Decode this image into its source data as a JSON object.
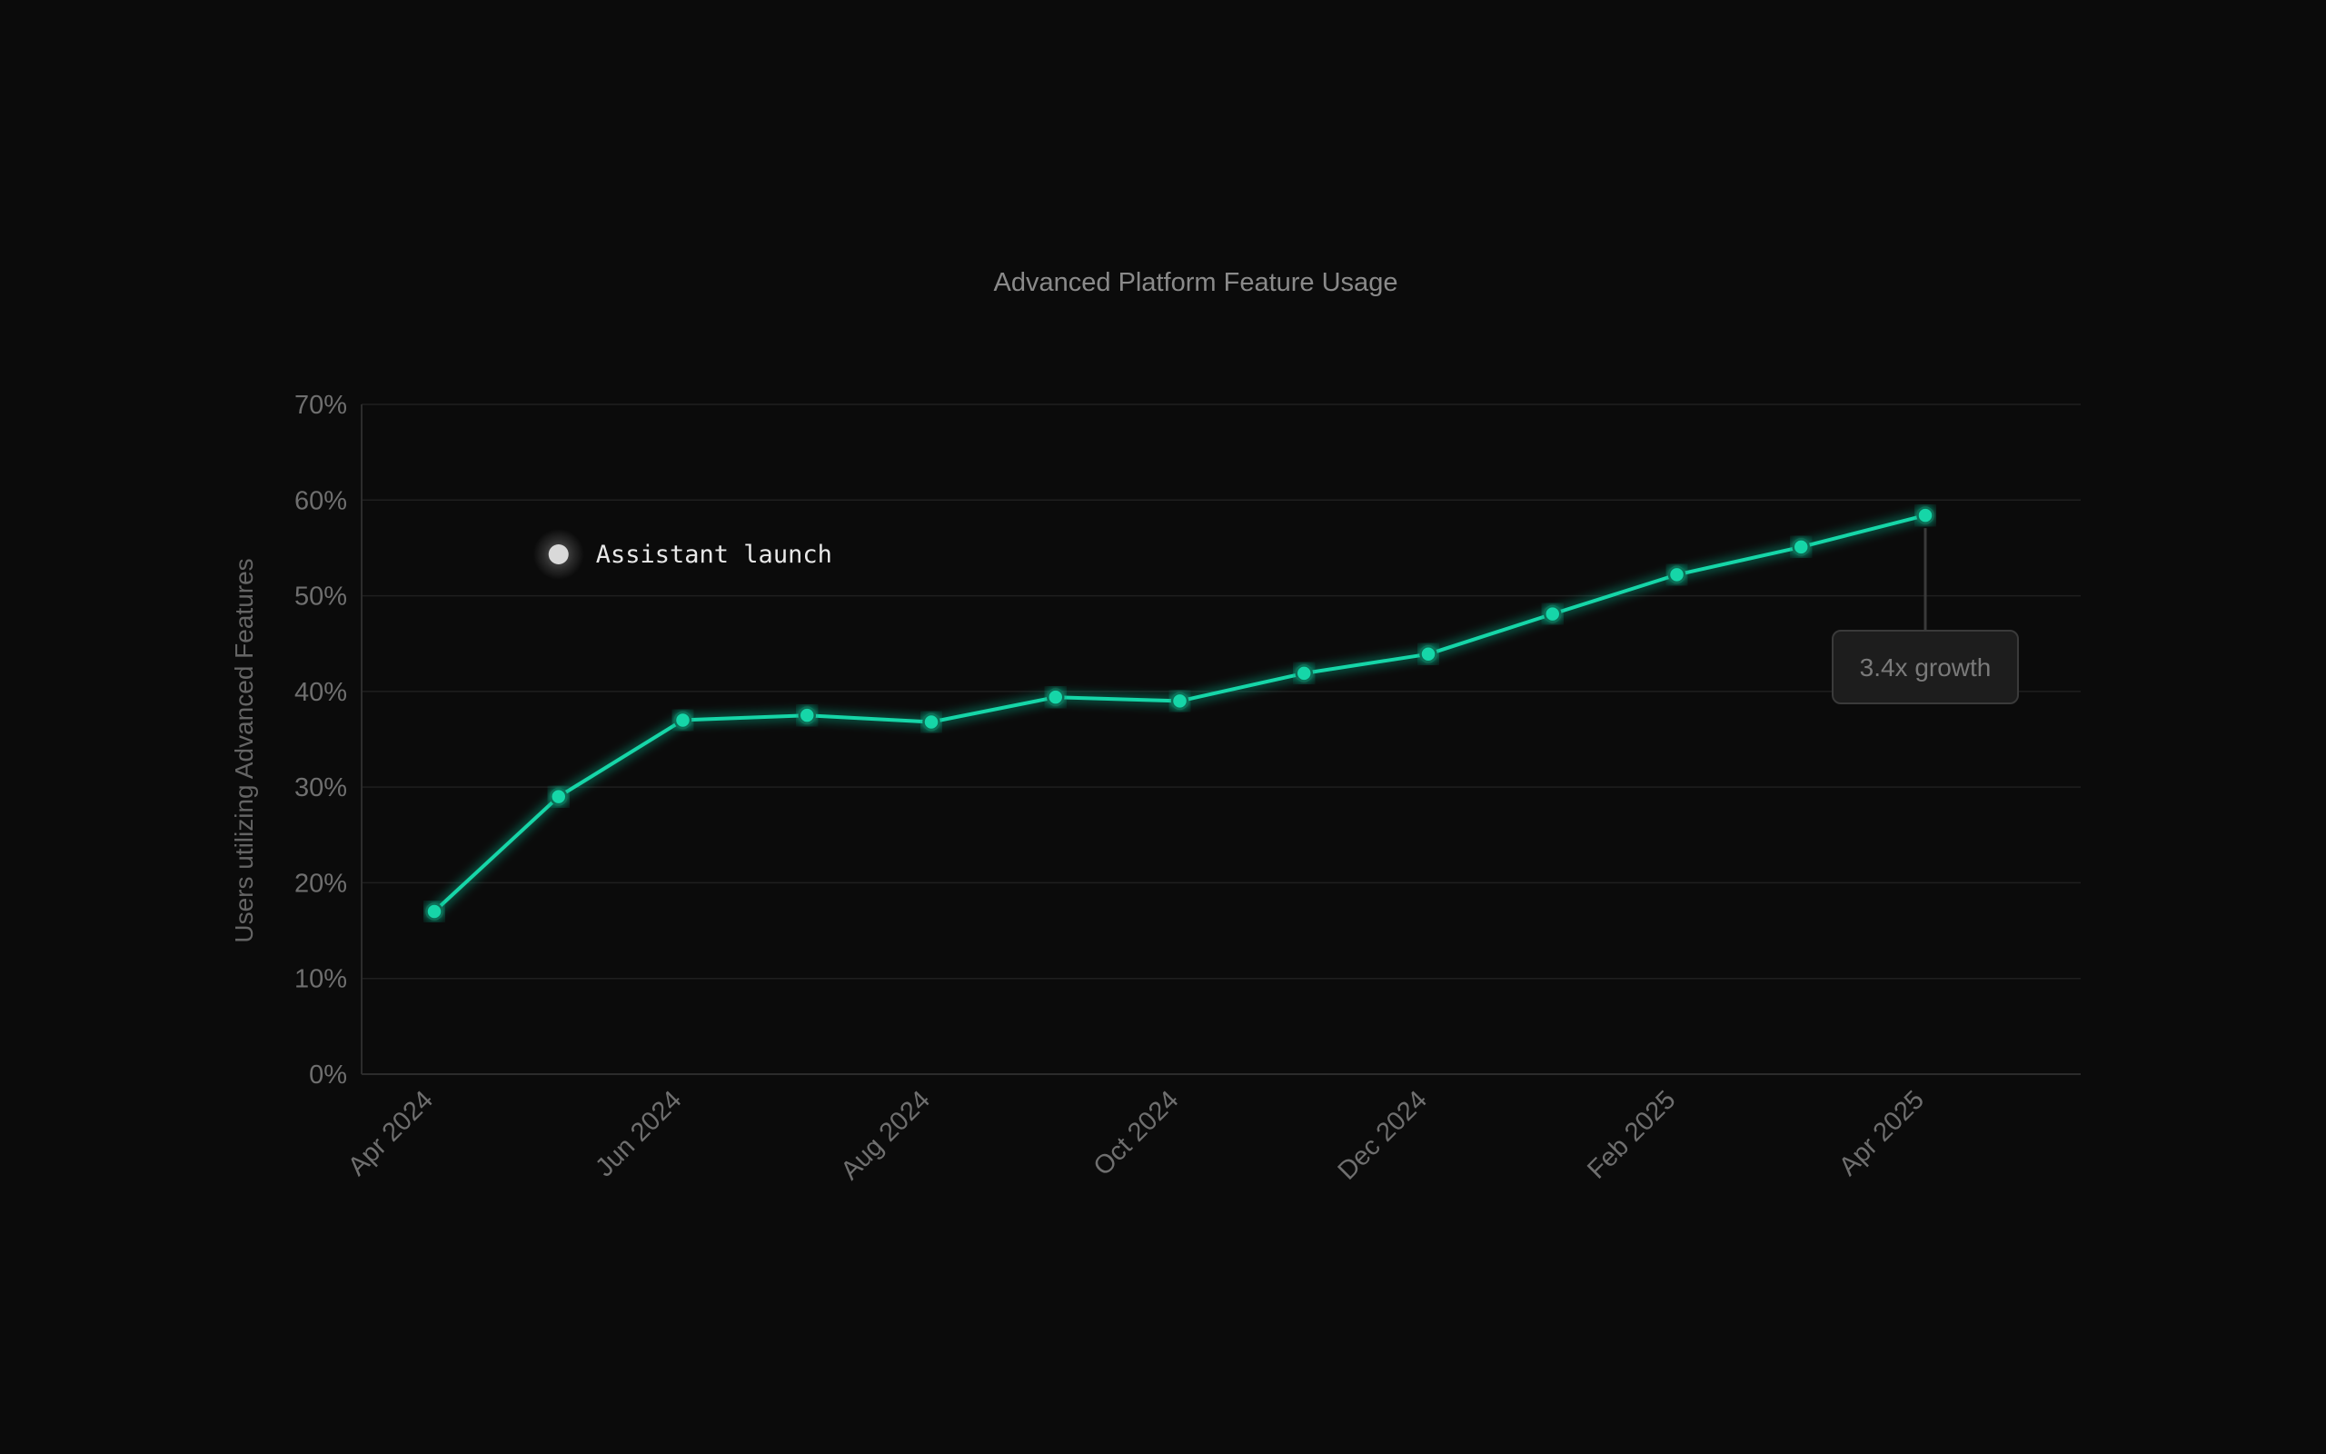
{
  "colors": {
    "background": "#0b0b0b",
    "line": "#13d6a8",
    "grid": "#1f1f1f",
    "axis": "#2c2c2c",
    "text": "#6f6f6f"
  },
  "chart_data": {
    "type": "line",
    "title": "Advanced Platform Feature Usage",
    "xlabel": "",
    "ylabel": "Users utilizing Advanced Features",
    "x": [
      "2024-04",
      "2024-05",
      "2024-06",
      "2024-07",
      "2024-08",
      "2024-09",
      "2024-10",
      "2024-11",
      "2024-12",
      "2025-01",
      "2025-02",
      "2025-03",
      "2025-04"
    ],
    "x_tick_labels": [
      "Apr 2024",
      "Jun 2024",
      "Aug 2024",
      "Oct 2024",
      "Dec 2024",
      "Feb 2025",
      "Apr 2025"
    ],
    "x_tick_positions": [
      "2024-04",
      "2024-06",
      "2024-08",
      "2024-10",
      "2024-12",
      "2025-02",
      "2025-04"
    ],
    "series": [
      {
        "values": [
          17,
          29,
          37,
          37.5,
          36.8,
          39.4,
          39,
          41.9,
          43.9,
          48.1,
          52.2,
          55.1,
          58.4
        ]
      }
    ],
    "y_tick_labels": [
      "0%",
      "10%",
      "20%",
      "30%",
      "40%",
      "50%",
      "60%",
      "70%"
    ],
    "ylim": [
      0,
      70
    ],
    "grid": true,
    "annotations": [
      {
        "text": "Assistant launch",
        "x": "2024-05",
        "y": 29
      },
      {
        "text": "3.4x growth",
        "x": "2025-04",
        "y": 58.4
      }
    ]
  }
}
